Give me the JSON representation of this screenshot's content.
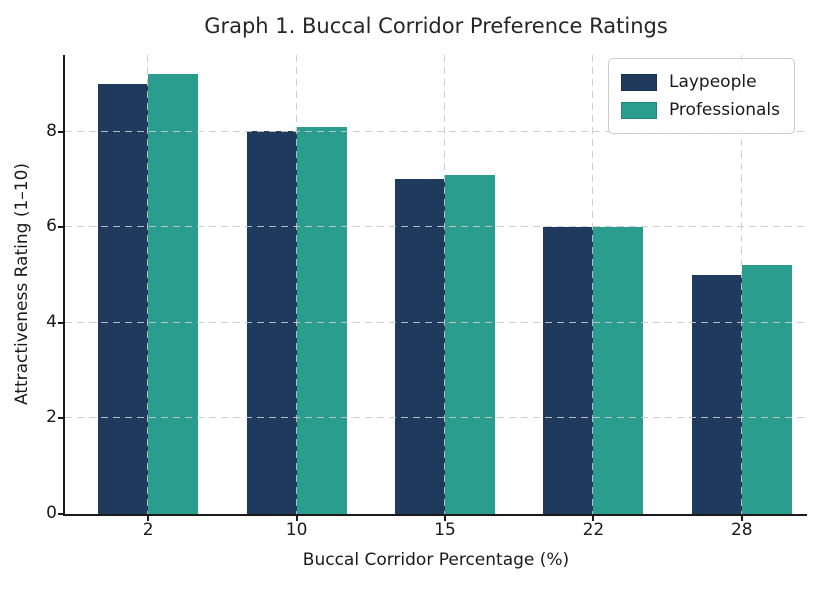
{
  "figure": {
    "title": "Graph 1. Buccal Corridor Preference Ratings"
  },
  "chart_data": {
    "type": "bar",
    "title": "Graph 1. Buccal Corridor Preference Ratings",
    "xlabel": "Buccal Corridor Percentage (%)",
    "ylabel": "Attractiveness Rating (1–10)",
    "categories": [
      "2",
      "10",
      "15",
      "22",
      "28"
    ],
    "series": [
      {
        "name": "Laypeople",
        "color": "#1f3a5c",
        "values": [
          9.0,
          8.0,
          7.0,
          6.0,
          5.0
        ]
      },
      {
        "name": "Professionals",
        "color": "#2a9d8f",
        "values": [
          9.2,
          8.1,
          7.1,
          6.0,
          5.2
        ]
      }
    ],
    "yticks": [
      0,
      2,
      4,
      6,
      8
    ],
    "ylim": [
      0,
      9.6
    ],
    "grid": "dashed gridlines on both axes, drawn above bars",
    "legend_position": "upper right",
    "background_color": "#ffffff",
    "spines": "left and bottom only"
  }
}
